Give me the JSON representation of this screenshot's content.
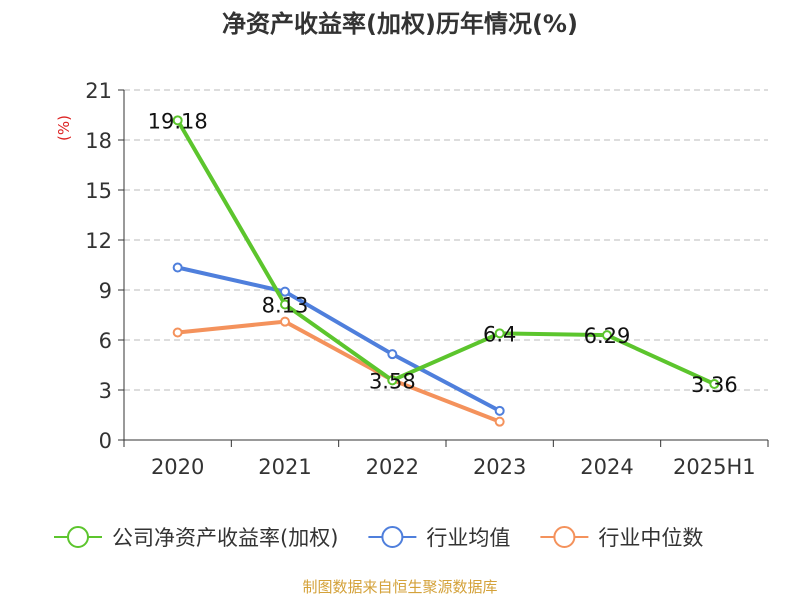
{
  "chart_data": {
    "type": "line",
    "title": "净资产收益率(加权)历年情况(%)",
    "ylabel": "(%)",
    "xlabel": "",
    "categories": [
      "2020",
      "2021",
      "2022",
      "2023",
      "2024",
      "2025H1"
    ],
    "ylim": [
      0,
      21
    ],
    "yticks": [
      0,
      3,
      6,
      9,
      12,
      15,
      18,
      21
    ],
    "grid": true,
    "legend_position": "bottom",
    "series": [
      {
        "name": "公司净资产收益率(加权)",
        "color": "#5cc52d",
        "values": [
          19.18,
          8.13,
          3.58,
          6.4,
          6.29,
          3.36
        ],
        "data_labels": [
          "19.18",
          "8.13",
          "3.58",
          "6.4",
          "6.29",
          "3.36"
        ]
      },
      {
        "name": "行业均值",
        "color": "#4f7fdc",
        "values": [
          10.35,
          8.9,
          5.15,
          1.75,
          null,
          null
        ]
      },
      {
        "name": "行业中位数",
        "color": "#f4925c",
        "values": [
          6.45,
          7.1,
          3.6,
          1.1,
          null,
          null
        ]
      }
    ],
    "source": "制图数据来自恒生聚源数据库",
    "colors": {
      "title": "#333333",
      "axis": "#333333",
      "grid": "#bbbbbb",
      "ylabel": "#dd2222",
      "source": "#d4a23a"
    }
  }
}
